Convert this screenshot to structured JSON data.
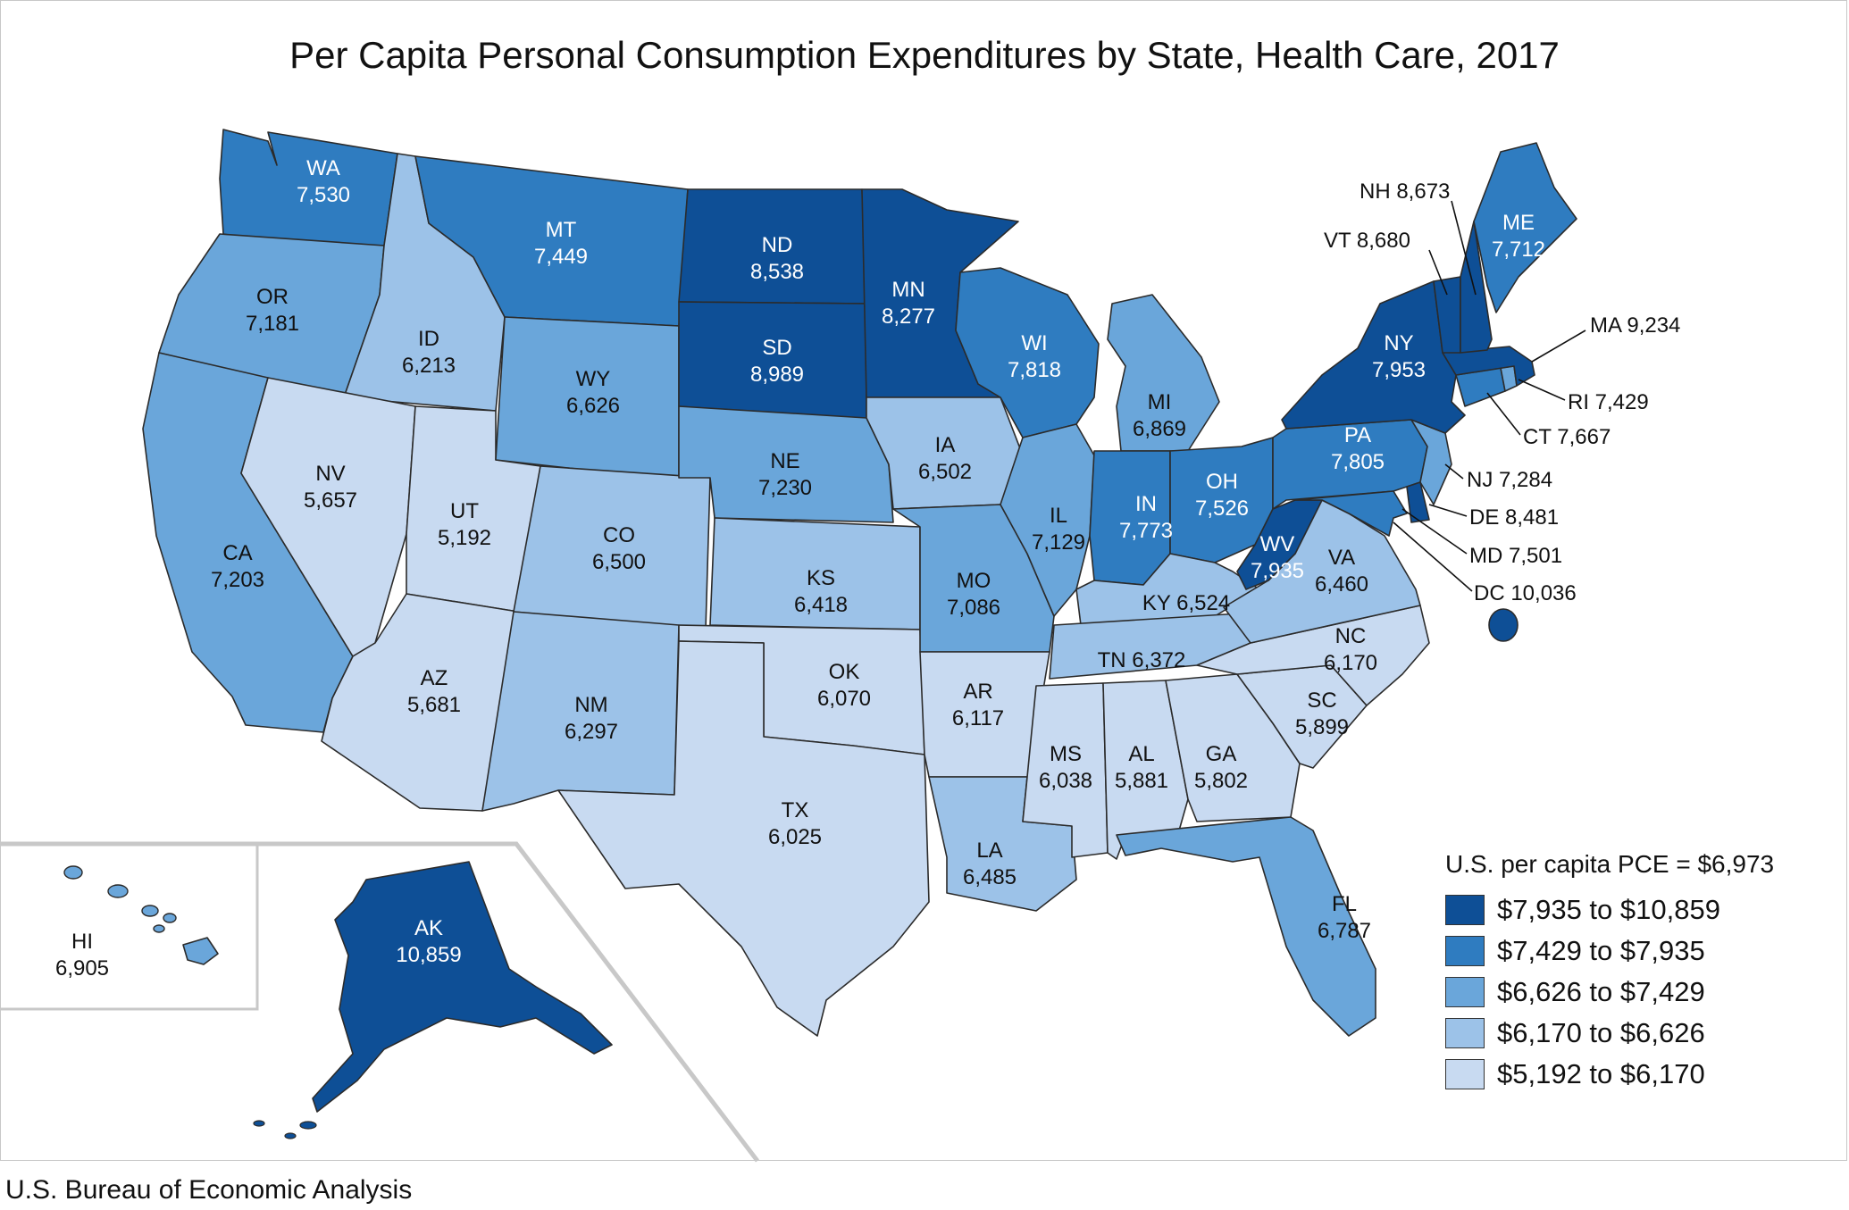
{
  "title": "Per Capita Personal Consumption Expenditures by State, Health Care, 2017",
  "source": "U.S. Bureau of Economic Analysis",
  "legend": {
    "note": "U.S. per capita PCE = $6,973",
    "bins": [
      {
        "label": "$7,935 to $10,859",
        "color": "#0e4f96"
      },
      {
        "label": "$7,429 to $7,935",
        "color": "#2f7cc0"
      },
      {
        "label": "$6,626 to $7,429",
        "color": "#6aa6da"
      },
      {
        "label": "$6,170 to $6,626",
        "color": "#9cc2e8"
      },
      {
        "label": "$5,192 to $6,170",
        "color": "#c8daf1"
      }
    ]
  },
  "states": [
    {
      "abbr": "WA",
      "value": "7,530",
      "bin": 1
    },
    {
      "abbr": "OR",
      "value": "7,181",
      "bin": 2
    },
    {
      "abbr": "CA",
      "value": "7,203",
      "bin": 2
    },
    {
      "abbr": "ID",
      "value": "6,213",
      "bin": 3
    },
    {
      "abbr": "NV",
      "value": "5,657",
      "bin": 4
    },
    {
      "abbr": "UT",
      "value": "5,192",
      "bin": 4
    },
    {
      "abbr": "AZ",
      "value": "5,681",
      "bin": 4
    },
    {
      "abbr": "MT",
      "value": "7,449",
      "bin": 1
    },
    {
      "abbr": "WY",
      "value": "6,626",
      "bin": 2
    },
    {
      "abbr": "CO",
      "value": "6,500",
      "bin": 3
    },
    {
      "abbr": "NM",
      "value": "6,297",
      "bin": 3
    },
    {
      "abbr": "ND",
      "value": "8,538",
      "bin": 0
    },
    {
      "abbr": "SD",
      "value": "8,989",
      "bin": 0
    },
    {
      "abbr": "NE",
      "value": "7,230",
      "bin": 2
    },
    {
      "abbr": "KS",
      "value": "6,418",
      "bin": 3
    },
    {
      "abbr": "OK",
      "value": "6,070",
      "bin": 4
    },
    {
      "abbr": "TX",
      "value": "6,025",
      "bin": 4
    },
    {
      "abbr": "MN",
      "value": "8,277",
      "bin": 0
    },
    {
      "abbr": "IA",
      "value": "6,502",
      "bin": 3
    },
    {
      "abbr": "MO",
      "value": "7,086",
      "bin": 2
    },
    {
      "abbr": "AR",
      "value": "6,117",
      "bin": 4
    },
    {
      "abbr": "LA",
      "value": "6,485",
      "bin": 3
    },
    {
      "abbr": "WI",
      "value": "7,818",
      "bin": 1
    },
    {
      "abbr": "IL",
      "value": "7,129",
      "bin": 2
    },
    {
      "abbr": "MI",
      "value": "6,869",
      "bin": 2
    },
    {
      "abbr": "IN",
      "value": "7,773",
      "bin": 1
    },
    {
      "abbr": "OH",
      "value": "7,526",
      "bin": 1
    },
    {
      "abbr": "KY",
      "value": "6,524",
      "bin": 3
    },
    {
      "abbr": "TN",
      "value": "6,372",
      "bin": 3
    },
    {
      "abbr": "MS",
      "value": "6,038",
      "bin": 4
    },
    {
      "abbr": "AL",
      "value": "5,881",
      "bin": 4
    },
    {
      "abbr": "GA",
      "value": "5,802",
      "bin": 4
    },
    {
      "abbr": "FL",
      "value": "6,787",
      "bin": 2
    },
    {
      "abbr": "SC",
      "value": "5,899",
      "bin": 4
    },
    {
      "abbr": "NC",
      "value": "6,170",
      "bin": 4
    },
    {
      "abbr": "VA",
      "value": "6,460",
      "bin": 3
    },
    {
      "abbr": "WV",
      "value": "7,935",
      "bin": 0
    },
    {
      "abbr": "PA",
      "value": "7,805",
      "bin": 1
    },
    {
      "abbr": "NY",
      "value": "7,953",
      "bin": 0
    },
    {
      "abbr": "ME",
      "value": "7,712",
      "bin": 1
    },
    {
      "abbr": "NH",
      "value": "8,673",
      "bin": 0
    },
    {
      "abbr": "VT",
      "value": "8,680",
      "bin": 0
    },
    {
      "abbr": "MA",
      "value": "9,234",
      "bin": 0
    },
    {
      "abbr": "RI",
      "value": "7,429",
      "bin": 2
    },
    {
      "abbr": "CT",
      "value": "7,667",
      "bin": 1
    },
    {
      "abbr": "NJ",
      "value": "7,284",
      "bin": 2
    },
    {
      "abbr": "DE",
      "value": "8,481",
      "bin": 0
    },
    {
      "abbr": "MD",
      "value": "7,501",
      "bin": 1
    },
    {
      "abbr": "DC",
      "value": "10,036",
      "bin": 0
    },
    {
      "abbr": "AK",
      "value": "10,859",
      "bin": 0
    },
    {
      "abbr": "HI",
      "value": "6,905",
      "bin": 2
    }
  ]
}
